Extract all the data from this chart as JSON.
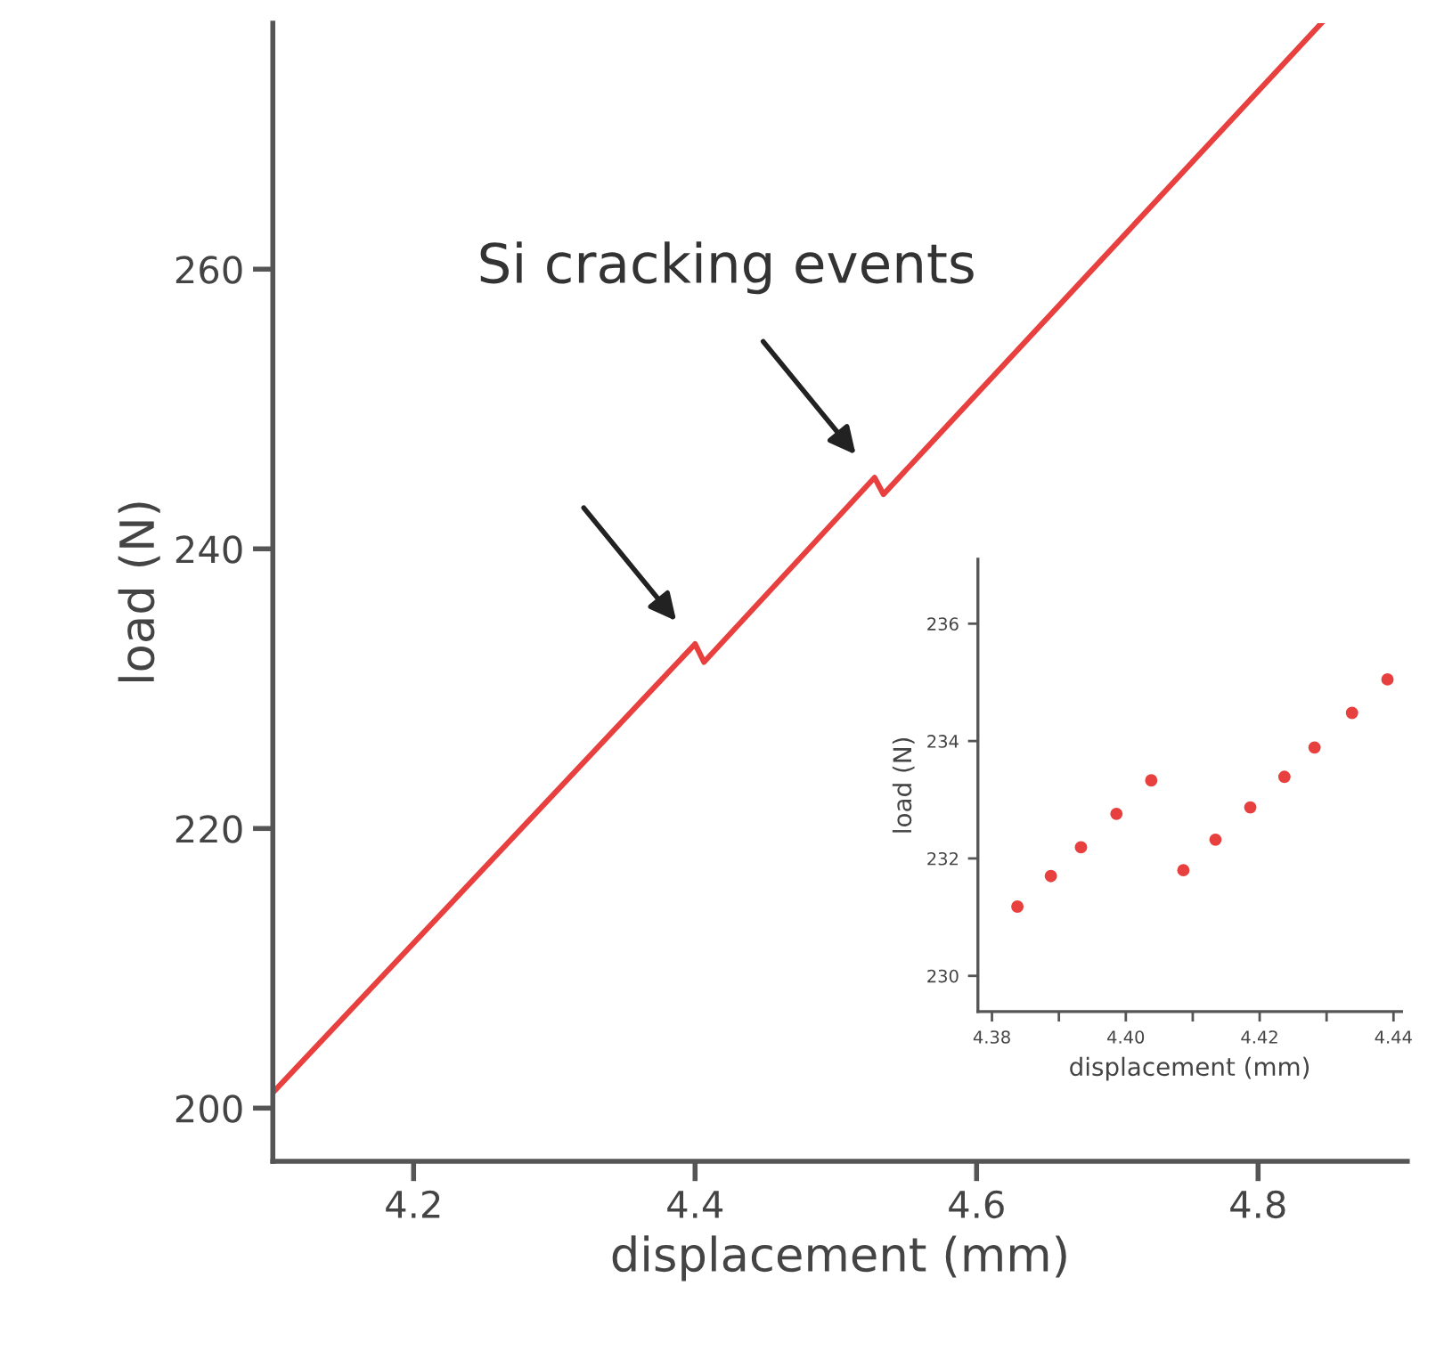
{
  "chart_data": [
    {
      "type": "line",
      "xlabel": "displacement (mm)",
      "ylabel": "load (N)",
      "annotations": [
        "Si cracking events"
      ],
      "xlim": [
        4.1,
        4.906
      ],
      "xticks": [
        4.2,
        4.4,
        4.6,
        4.8
      ],
      "ylim": [
        196.2,
        277.6
      ],
      "yticks": [
        200,
        220,
        240,
        260
      ],
      "grid": false,
      "marker": "none",
      "line_style": "solid",
      "series": [
        {
          "color": "#e8403f",
          "x": [
            4.1,
            4.4,
            4.4063,
            4.5275,
            4.5338,
            4.845
          ],
          "values": [
            201.1,
            233.2,
            231.9,
            245.1,
            243.9,
            277.6
          ]
        }
      ]
    },
    {
      "type": "scatter",
      "xlabel": "displacement (mm)",
      "ylabel": "load (N)",
      "xlim": [
        4.3779,
        4.4412
      ],
      "xticks": [
        4.38,
        {
          "value": 4.39,
          "label": null
        },
        {
          "value": 4.4,
          "label": "4.40"
        },
        {
          "value": 4.41,
          "label": null
        },
        4.42,
        {
          "value": 4.43,
          "label": null
        },
        4.44
      ],
      "ylim": [
        229.39,
        237.1
      ],
      "yticks": [
        230,
        232,
        234,
        236
      ],
      "grid": false,
      "marker": "circle",
      "series": [
        {
          "color": "#e8403f",
          "x": [
            4.3838,
            4.3888,
            4.3933,
            4.3986,
            4.4038,
            4.4086,
            4.4134,
            4.4186,
            4.4237,
            4.4282,
            4.4338,
            4.4391
          ],
          "values": [
            231.18,
            231.7,
            232.19,
            232.76,
            233.33,
            231.8,
            232.32,
            232.87,
            233.39,
            233.89,
            234.48,
            235.05
          ]
        }
      ]
    }
  ]
}
